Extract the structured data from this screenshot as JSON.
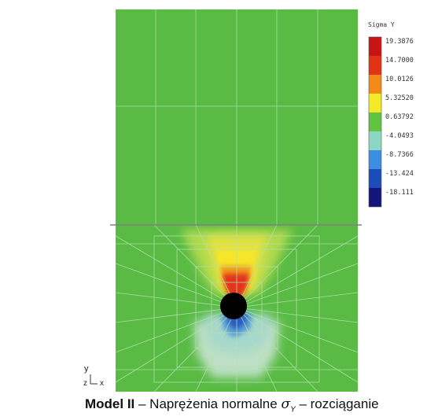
{
  "figure": {
    "legend": {
      "title": "Sigma Y",
      "labels": [
        "19.3876",
        "14.7000",
        "10.0126",
        "5.32520",
        "0.63792",
        "-4.0493",
        "-8.7366",
        "-13.424",
        "-18.111"
      ],
      "colors": [
        "#c81414",
        "#e23216",
        "#f28a18",
        "#f4ea28",
        "#62c242",
        "#8ed6c4",
        "#3c8ee0",
        "#1c4cb8",
        "#14147a"
      ]
    },
    "triad": {
      "y_label": "y",
      "z_label": "z",
      "x_label": "x"
    },
    "colors": {
      "field": "#59bb44",
      "mesh": "#a8dca0",
      "hole": "#000000",
      "interface": "#808080"
    }
  },
  "caption": {
    "model": "Model II",
    "dash1": " – Naprężenia normalne ",
    "symbol": "σ",
    "subscript": "Y",
    "dash2": " – rozciąganie"
  }
}
